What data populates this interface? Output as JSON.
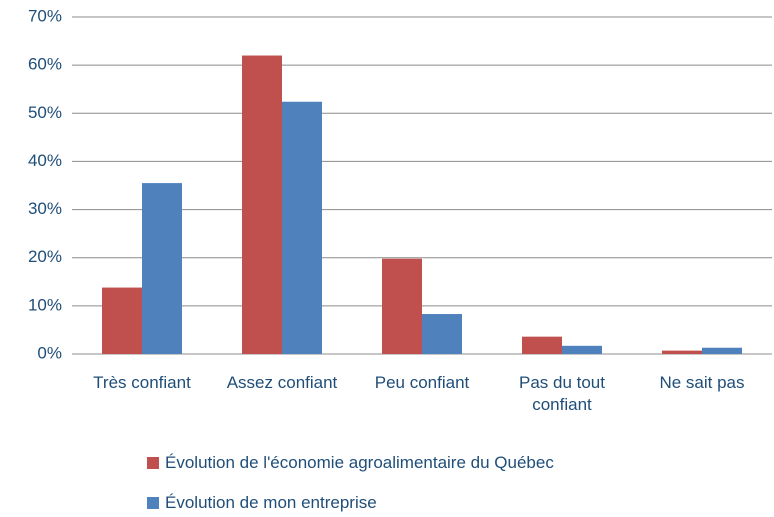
{
  "chart_data": {
    "type": "bar",
    "categories": [
      "Très confiant",
      "Assez confiant",
      "Peu confiant",
      "Pas du tout confiant",
      "Ne sait pas"
    ],
    "series": [
      {
        "name": "Évolution de l'économie agroalimentaire du Québec",
        "color": "#c0504d",
        "values": [
          13.8,
          62,
          19.8,
          3.6,
          0.7
        ]
      },
      {
        "name": "Évolution de mon entreprise",
        "color": "#4f81bd",
        "values": [
          35.5,
          52.4,
          8.3,
          1.7,
          1.3
        ]
      }
    ],
    "ylim": [
      0,
      70
    ],
    "yticks": [
      {
        "value": 0,
        "label": "0%"
      },
      {
        "value": 10,
        "label": "10%"
      },
      {
        "value": 20,
        "label": "20%"
      },
      {
        "value": 30,
        "label": "30%"
      },
      {
        "value": 40,
        "label": "40%"
      },
      {
        "value": 50,
        "label": "50%"
      },
      {
        "value": 60,
        "label": "60%"
      },
      {
        "value": 70,
        "label": "70%"
      }
    ],
    "grid": true
  }
}
